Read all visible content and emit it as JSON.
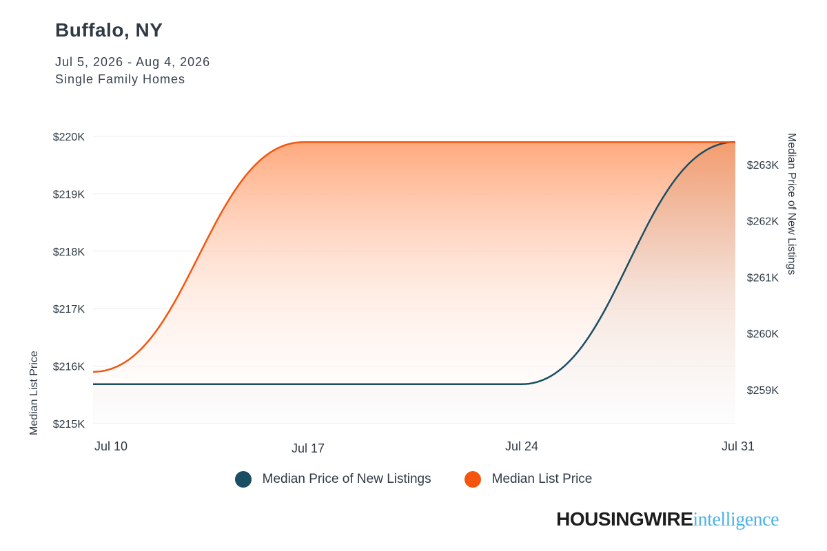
{
  "header": {
    "title": "Buffalo, NY",
    "date_range": "Jul 5, 2026 - Aug 4, 2026",
    "segment": "Single Family Homes"
  },
  "brand": {
    "part1": "HOUSINGWIRE",
    "part2": "intelligence"
  },
  "colors": {
    "new_listings": "#194e63",
    "list_price": "#f4560f",
    "grid": "#ececec"
  },
  "chart_data": {
    "type": "line",
    "x_ticks": [
      "Jul 10",
      "Jul 17",
      "Jul 24",
      "Jul 31"
    ],
    "y_left": {
      "label": "Median List Price",
      "range": [
        215000,
        220000
      ],
      "tick_values": [
        215000,
        216000,
        217000,
        218000,
        219000,
        220000
      ],
      "tick_labels": [
        "$215K",
        "$216K",
        "$217K",
        "$218K",
        "$219K",
        "$220K"
      ]
    },
    "y_right": {
      "label": "Median Price of New Listings",
      "range": [
        258400,
        263500
      ],
      "tick_values": [
        259000,
        260000,
        261000,
        262000,
        263000
      ],
      "tick_labels": [
        "$259K",
        "$260K",
        "$261K",
        "$262K",
        "$263K"
      ]
    },
    "series": [
      {
        "name": "Median Price of New Listings",
        "axis": "right",
        "points": [
          [
            "Jul 10",
            259100
          ],
          [
            "Jul 24",
            259100
          ],
          [
            "Jul 31",
            263400
          ]
        ]
      },
      {
        "name": "Median List Price",
        "axis": "left",
        "points": [
          [
            "Jul 10",
            215900
          ],
          [
            "Jul 17",
            219900
          ],
          [
            "Jul 31",
            219900
          ]
        ]
      }
    ],
    "grid": true,
    "legend": "bottom"
  }
}
